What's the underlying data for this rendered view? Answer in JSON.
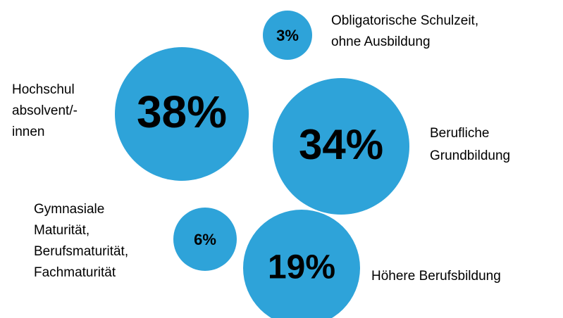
{
  "chart_data": {
    "type": "bubble",
    "color": "#2ea3d9",
    "categories": [
      [
        "Obligatorische Schulzeit,",
        "ohne Ausbildung"
      ],
      [
        "Hochschul",
        "absolvent/-",
        "innen"
      ],
      [
        "Berufliche",
        "Grundbildung"
      ],
      [
        "Höhere Berufsbildung"
      ],
      [
        "Gymnasiale",
        "Maturität,",
        "Berufsmaturität,",
        "Fachmaturität"
      ]
    ],
    "values": [
      3,
      38,
      34,
      19,
      6
    ],
    "value_labels": [
      "3%",
      "38%",
      "34%",
      "19%",
      "6%"
    ]
  }
}
